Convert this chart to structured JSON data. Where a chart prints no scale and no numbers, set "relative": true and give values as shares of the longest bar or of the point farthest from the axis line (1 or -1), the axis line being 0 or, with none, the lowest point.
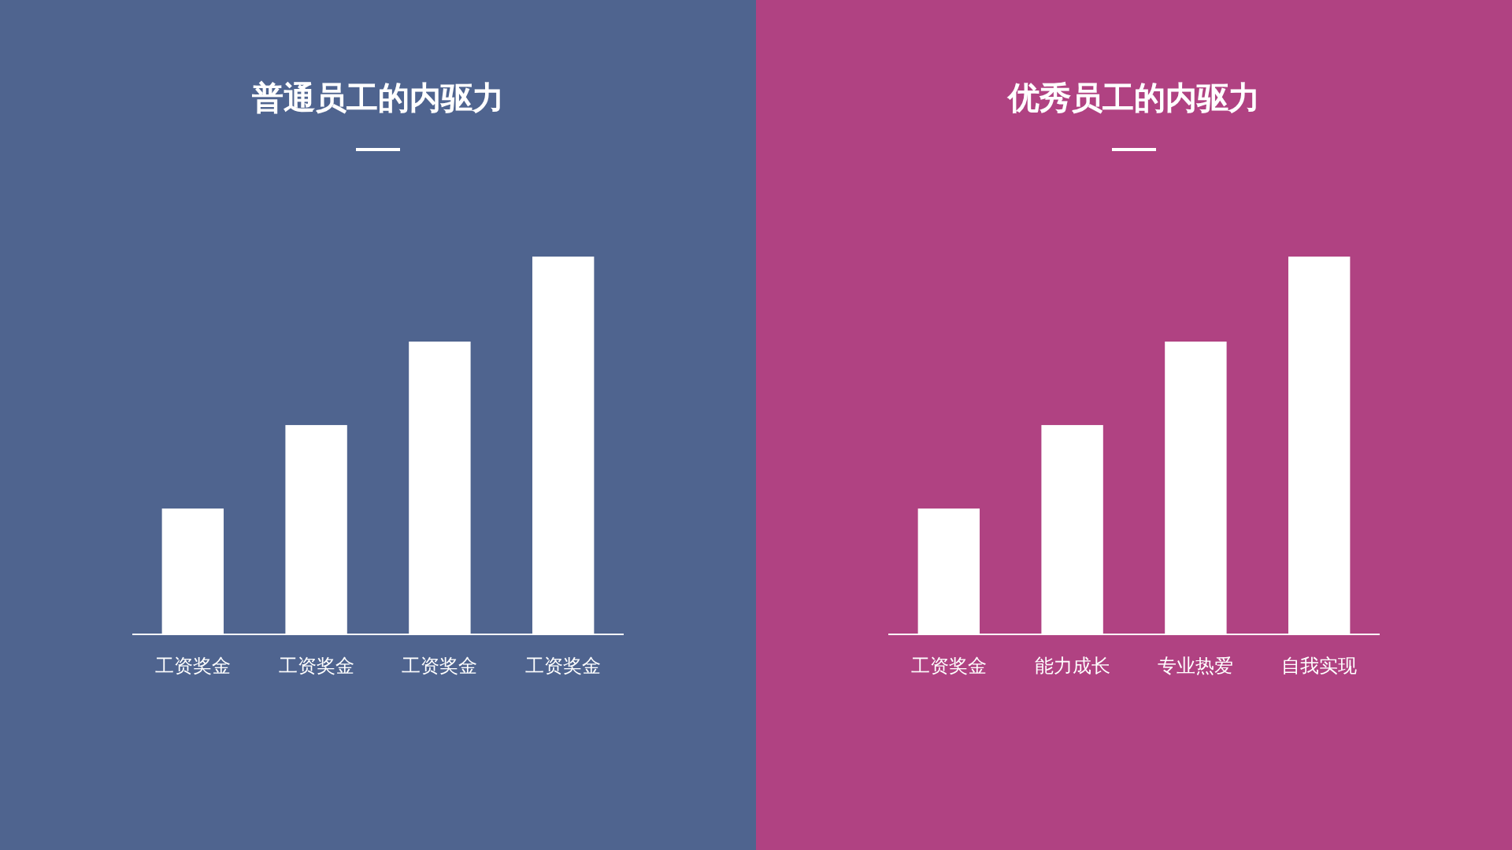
{
  "chart_data": [
    {
      "type": "bar",
      "title": "普通员工的内驱力",
      "categories": [
        "工资奖金",
        "工资奖金",
        "工资奖金",
        "工资奖金"
      ],
      "values": [
        0.333,
        0.554,
        0.775,
        1
      ],
      "color": "#ffffff",
      "relative": true
    },
    {
      "type": "bar",
      "title": "优秀员工的内驱力",
      "categories": [
        "工资奖金",
        "能力成长",
        "专业热爱",
        "自我实现"
      ],
      "values": [
        0.333,
        0.554,
        0.775,
        1
      ],
      "color": "#ffffff",
      "relative": true
    }
  ]
}
